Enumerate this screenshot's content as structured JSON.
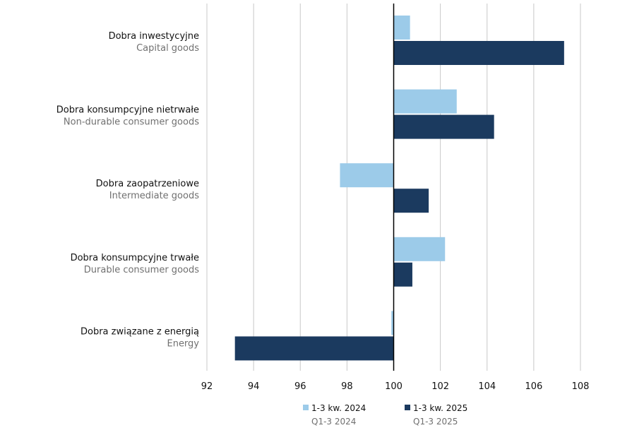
{
  "chart_data": {
    "type": "bar",
    "orientation": "horizontal",
    "baseline": 100,
    "xlim": [
      92,
      108
    ],
    "xticks": [
      "92",
      "94",
      "96",
      "98",
      "100",
      "102",
      "104",
      "106",
      "108"
    ],
    "grid": true,
    "categories": [
      {
        "pl": "Dobra inwestycyjne",
        "en": "Capital goods"
      },
      {
        "pl": "Dobra konsumpcyjne nietrwałe",
        "en": "Non-durable consumer goods"
      },
      {
        "pl": "Dobra zaopatrzeniowe",
        "en": "Intermediate goods"
      },
      {
        "pl": "Dobra konsumpcyjne trwałe",
        "en": "Durable consumer goods"
      },
      {
        "pl": "Dobra związane z energią",
        "en": "Energy"
      }
    ],
    "series": [
      {
        "name_pl": "1-3 kw. 2024",
        "name_en": "Q1-3 2024",
        "color": "#9ccbe9",
        "values": [
          100.7,
          102.7,
          97.7,
          102.2,
          99.9
        ]
      },
      {
        "name_pl": "1-3 kw. 2025",
        "name_en": "Q1-3 2025",
        "color": "#1b3a5f",
        "values": [
          107.3,
          104.3,
          101.5,
          100.8,
          93.2
        ]
      }
    ],
    "legend_position": "bottom"
  }
}
